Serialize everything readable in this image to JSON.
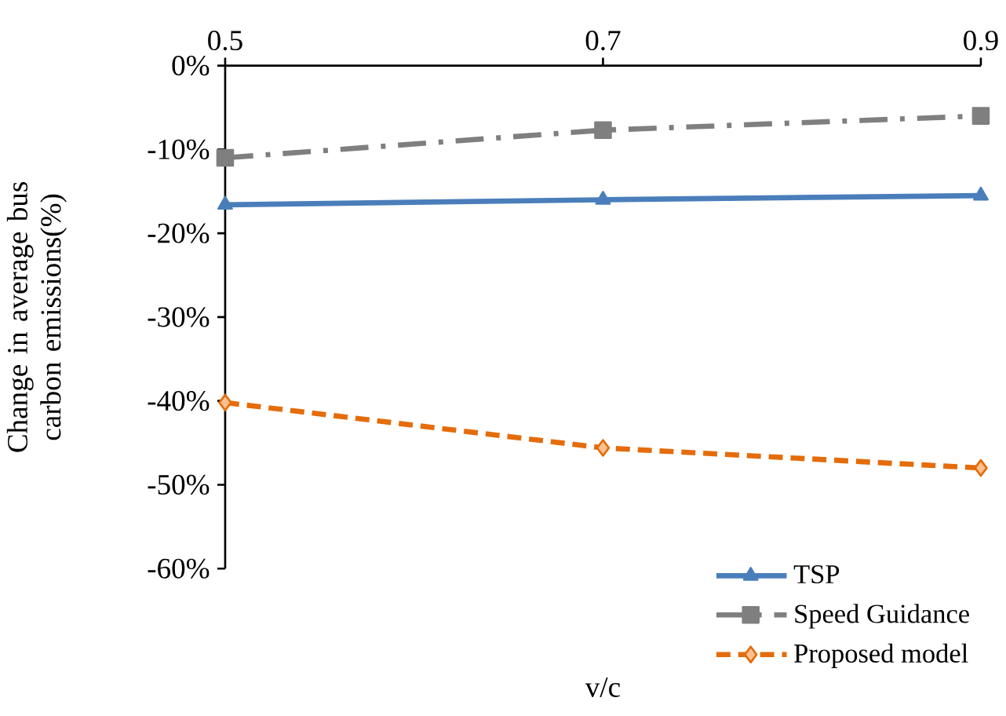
{
  "chart_data": {
    "type": "line",
    "xlabel": "v/c",
    "ylabel": "Change in average bus carbon emissions(%)",
    "x": [
      0.5,
      0.7,
      0.9
    ],
    "series": [
      {
        "name": "TSP",
        "color": "#4a7ebb",
        "values": [
          -16.6,
          -16,
          -15.5
        ],
        "marker": "triangle",
        "line_style": "solid"
      },
      {
        "name": "Speed Guidance",
        "color": "#7f7f7f",
        "values": [
          -11,
          -7.7,
          -6
        ],
        "marker": "square",
        "line_style": "dashdot"
      },
      {
        "name": "Proposed model",
        "color": "#e46c0a",
        "values": [
          -40.2,
          -45.6,
          -48
        ],
        "marker": "diamond",
        "line_style": "dashed"
      }
    ],
    "xlim": [
      0.5,
      0.9
    ],
    "xticks": [
      0.5,
      0.7,
      0.9
    ],
    "ylim": [
      -60,
      0
    ],
    "yticks": [
      {
        "value": -60,
        "label": "-60%"
      },
      {
        "value": -50,
        "label": "-50%"
      },
      {
        "value": -40,
        "label": "-40%"
      },
      {
        "value": -30,
        "label": "-30%"
      },
      {
        "value": -20,
        "label": "-20%"
      },
      {
        "value": -10,
        "label": "-10%"
      },
      {
        "value": 0,
        "label": "0%"
      }
    ],
    "grid": false,
    "legend": "bottom right"
  }
}
